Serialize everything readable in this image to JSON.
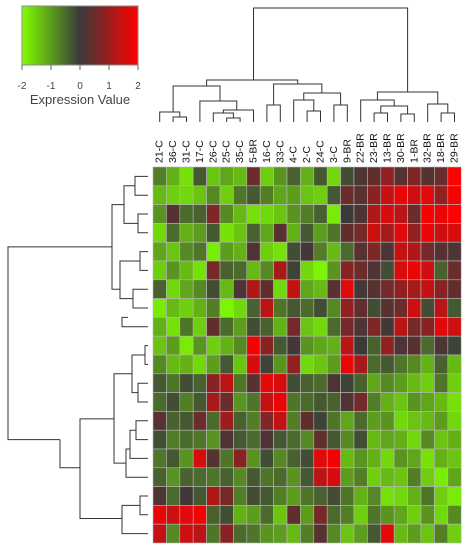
{
  "chart_data": {
    "type": "heatmap",
    "title": "",
    "color_key": {
      "title": "Expression   Value",
      "range": [
        -2,
        2
      ],
      "ticks": [
        "-2",
        "-1",
        "0",
        "1",
        "2"
      ],
      "colors": {
        "low": "#7fff00",
        "mid": "#3a3a3a",
        "high": "#ff0000"
      }
    },
    "columns": [
      "21-C",
      "36-C",
      "31-C",
      "17-C",
      "26-C",
      "25-C",
      "35-C",
      "5-BR",
      "16-C",
      "33-C",
      "4-C",
      "2-C",
      "24-C",
      "3-C",
      "9-BR",
      "22-BR",
      "23-BR",
      "13-BR",
      "30-BR",
      "1-BR",
      "32-BR",
      "18-BR",
      "29-BR"
    ],
    "row_count": 20,
    "values": [
      [
        -0.7,
        -1.2,
        -1.7,
        -0.3,
        -1.4,
        -1.1,
        -1.3,
        0.5,
        -1.5,
        -0.9,
        -0.4,
        -1.2,
        -0.3,
        -1.6,
        -0.2,
        0.2,
        0.4,
        0.9,
        0.3,
        0.7,
        0.3,
        0.5,
        2.0
      ],
      [
        -1.3,
        -1.5,
        -1.6,
        -1.4,
        -0.8,
        -1.5,
        -0.6,
        -0.3,
        -0.7,
        -1.1,
        -1.0,
        -1.4,
        -1.5,
        -0.3,
        0.5,
        0.3,
        0.8,
        1.4,
        1.8,
        1.5,
        1.7,
        0.9,
        1.9
      ],
      [
        -0.9,
        0.3,
        -0.5,
        -0.4,
        0.7,
        -0.8,
        -1.3,
        -1.7,
        -1.6,
        -1.4,
        -0.9,
        -0.7,
        -0.4,
        -1.8,
        0.0,
        0.2,
        1.2,
        1.6,
        1.3,
        0.5,
        1.9,
        1.8,
        2.0
      ],
      [
        -1.6,
        -0.5,
        -1.2,
        -1.0,
        -0.3,
        -1.7,
        -1.4,
        -0.4,
        -1.1,
        0.3,
        -1.2,
        -0.3,
        -1.0,
        -0.6,
        0.4,
        0.6,
        1.5,
        1.1,
        1.7,
        0.9,
        1.8,
        1.5,
        1.6
      ],
      [
        -1.1,
        -1.4,
        -0.8,
        -0.6,
        -1.8,
        -1.0,
        -1.2,
        0.2,
        -1.5,
        -1.7,
        -0.2,
        0.1,
        -0.7,
        -1.3,
        -0.5,
        0.3,
        0.7,
        0.2,
        1.4,
        1.2,
        0.6,
        0.3,
        0.2
      ],
      [
        -1.5,
        -0.9,
        -1.3,
        -1.7,
        0.6,
        -0.4,
        -0.5,
        -1.3,
        -0.8,
        1.1,
        -0.1,
        -1.6,
        -1.9,
        -0.9,
        0.8,
        0.5,
        0.2,
        -0.2,
        1.6,
        1.8,
        1.5,
        -0.4,
        0.5
      ],
      [
        -0.4,
        -1.6,
        -1.1,
        -0.8,
        -0.2,
        -1.3,
        0.2,
        1.2,
        0.4,
        -1.6,
        1.4,
        -1.1,
        -1.3,
        0.3,
        1.7,
        0.1,
        0.3,
        0.6,
        0.9,
        1.1,
        1.4,
        0.8,
        0.4
      ],
      [
        -1.8,
        -1.3,
        -1.5,
        -1.2,
        -0.7,
        -1.9,
        -1.6,
        -0.4,
        1.3,
        -0.6,
        -0.3,
        -0.5,
        -0.2,
        -0.8,
        0.9,
        0.4,
        -0.2,
        0.3,
        0.5,
        1.5,
        -0.2,
        1.3,
        -0.3
      ],
      [
        -1.2,
        -1.7,
        -0.6,
        -1.5,
        0.4,
        -0.5,
        -1.0,
        -0.2,
        -0.4,
        -1.2,
        0.6,
        -1.4,
        -1.6,
        -0.5,
        0.6,
        0.2,
        0.7,
        0.1,
        1.3,
        0.6,
        0.8,
        1.7,
        1.5
      ],
      [
        -1.4,
        -1.0,
        -1.8,
        -0.9,
        -1.5,
        -1.2,
        -0.8,
        1.9,
        0.8,
        -0.3,
        0.1,
        -0.9,
        -1.1,
        -1.2,
        1.3,
        0.0,
        -0.4,
        0.9,
        0.2,
        0.3,
        -0.5,
        0.2,
        -0.1
      ],
      [
        -0.8,
        -1.3,
        -1.2,
        -1.6,
        -1.0,
        -0.3,
        -1.4,
        1.6,
        -0.1,
        -0.9,
        0.9,
        -1.6,
        -1.4,
        -1.0,
        1.8,
        1.1,
        -0.5,
        -0.3,
        -0.6,
        -0.8,
        -1.2,
        -0.4,
        -1.3
      ],
      [
        -0.3,
        -0.6,
        -0.2,
        -0.4,
        0.8,
        1.3,
        -0.6,
        0.3,
        1.7,
        1.6,
        -0.2,
        -0.4,
        -0.5,
        0.2,
        -0.1,
        -0.4,
        -1.1,
        -0.8,
        -1.0,
        -1.3,
        -1.5,
        -0.6,
        -1.5
      ],
      [
        -0.5,
        -0.2,
        -0.7,
        -0.3,
        1.1,
        0.5,
        -0.9,
        -0.6,
        1.4,
        1.8,
        -0.6,
        -0.5,
        -0.3,
        -0.4,
        0.2,
        0.6,
        -0.7,
        -1.2,
        -1.4,
        -0.9,
        -1.1,
        -1.3,
        -1.7
      ],
      [
        0.3,
        -0.4,
        -0.3,
        0.5,
        -0.5,
        1.0,
        -0.4,
        -0.7,
        0.7,
        1.4,
        -0.7,
        0.4,
        -0.1,
        -0.6,
        -1.1,
        -0.5,
        -1.0,
        -0.9,
        -1.6,
        -1.4,
        -1.3,
        -1.0,
        -1.6
      ],
      [
        -0.2,
        -0.7,
        -0.5,
        -0.6,
        -0.9,
        0.2,
        -0.3,
        -0.5,
        0.2,
        -0.3,
        -0.5,
        -0.8,
        0.4,
        -0.3,
        -0.8,
        -0.2,
        -1.3,
        -1.1,
        -1.2,
        -1.6,
        -0.8,
        -1.4,
        -1.2
      ],
      [
        -0.6,
        -0.3,
        -0.9,
        1.6,
        0.3,
        -0.6,
        0.8,
        -0.9,
        -0.2,
        -0.8,
        -0.4,
        -0.2,
        1.7,
        1.9,
        -1.3,
        -0.9,
        -1.2,
        -1.6,
        -0.9,
        -1.1,
        -1.7,
        -1.2,
        -1.4
      ],
      [
        -0.4,
        -0.9,
        -0.4,
        -0.5,
        -0.6,
        -0.4,
        -0.8,
        -0.3,
        -0.6,
        -0.5,
        -0.9,
        -0.3,
        1.3,
        1.6,
        -1.0,
        -0.7,
        -1.5,
        -1.3,
        -1.4,
        -0.7,
        -1.5,
        -1.8,
        -1.1
      ],
      [
        0.2,
        -0.5,
        0.1,
        -0.3,
        1.2,
        0.6,
        -0.7,
        -0.2,
        -0.3,
        -0.7,
        -1.0,
        -0.6,
        -0.4,
        -0.2,
        -0.6,
        -1.2,
        -0.8,
        -1.7,
        -1.6,
        -1.2,
        -0.6,
        -1.5,
        -1.8
      ],
      [
        1.8,
        1.5,
        1.7,
        1.9,
        -0.4,
        -0.2,
        -1.2,
        -1.0,
        -0.5,
        -1.4,
        0.4,
        -1.0,
        0.6,
        -0.5,
        -0.7,
        -1.5,
        -0.6,
        -0.9,
        -1.1,
        -1.5,
        -0.9,
        -1.6,
        -0.8
      ],
      [
        1.4,
        -0.8,
        1.5,
        1.3,
        -0.6,
        0.8,
        -0.5,
        -0.6,
        -0.9,
        -1.0,
        -1.3,
        -0.7,
        0.3,
        -0.8,
        -1.4,
        -1.0,
        -0.3,
        1.7,
        -1.3,
        -1.0,
        -1.4,
        -0.7,
        -1.5
      ]
    ]
  }
}
